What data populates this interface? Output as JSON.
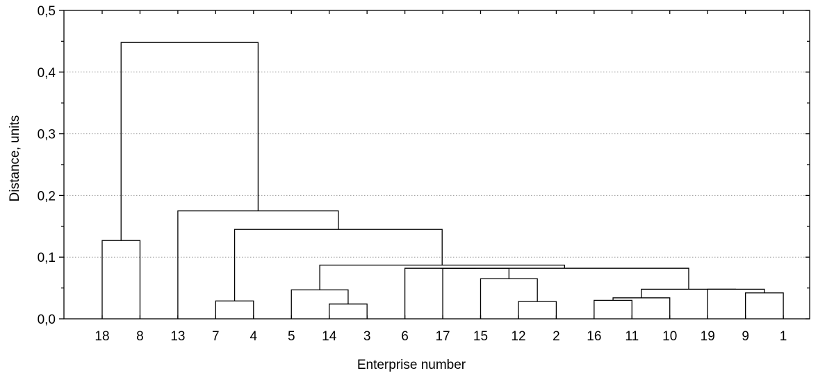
{
  "chart_data": {
    "type": "dendrogram",
    "xlabel": "Enterprise number",
    "ylabel": "Distance, units",
    "ylim": [
      0,
      0.5
    ],
    "yticks": [
      "0,0",
      "0,1",
      "0,2",
      "0,3",
      "0,4",
      "0,5"
    ],
    "leaves": [
      "18",
      "8",
      "13",
      "7",
      "4",
      "5",
      "14",
      "3",
      "6",
      "17",
      "15",
      "12",
      "2",
      "16",
      "11",
      "10",
      "19",
      "9",
      "1"
    ],
    "grid": true,
    "merges": [
      {
        "left": "leaf:18",
        "right": "leaf:8",
        "height": 0.127
      },
      {
        "left": "leaf:7",
        "right": "leaf:4",
        "height": 0.029
      },
      {
        "left": "leaf:14",
        "right": "leaf:3",
        "height": 0.024
      },
      {
        "left": "leaf:5",
        "right": "node:2",
        "height": 0.047
      },
      {
        "left": "leaf:12",
        "right": "leaf:2",
        "height": 0.028
      },
      {
        "left": "leaf:15",
        "right": "node:4",
        "height": 0.065
      },
      {
        "left": "leaf:17",
        "right": "node:5",
        "height": 0.082
      },
      {
        "left": "leaf:6",
        "right": "node:6",
        "height": 0.082
      },
      {
        "left": "leaf:16",
        "right": "leaf:11",
        "height": 0.03
      },
      {
        "left": "node:8",
        "right": "leaf:10",
        "height": 0.034
      },
      {
        "left": "leaf:9",
        "right": "leaf:1",
        "height": 0.042
      },
      {
        "left": "leaf:19",
        "right": "node:10",
        "height": 0.048
      },
      {
        "left": "node:9",
        "right": "node:11",
        "height": 0.048
      },
      {
        "left": "node:7",
        "right": "node:12",
        "height": 0.082
      },
      {
        "left": "node:3",
        "right": "node:13",
        "height": 0.087
      },
      {
        "left": "node:1",
        "right": "node:14",
        "height": 0.145
      },
      {
        "left": "leaf:13",
        "right": "node:15",
        "height": 0.175
      },
      {
        "left": "node:0",
        "right": "node:16",
        "height": 0.448
      }
    ]
  }
}
